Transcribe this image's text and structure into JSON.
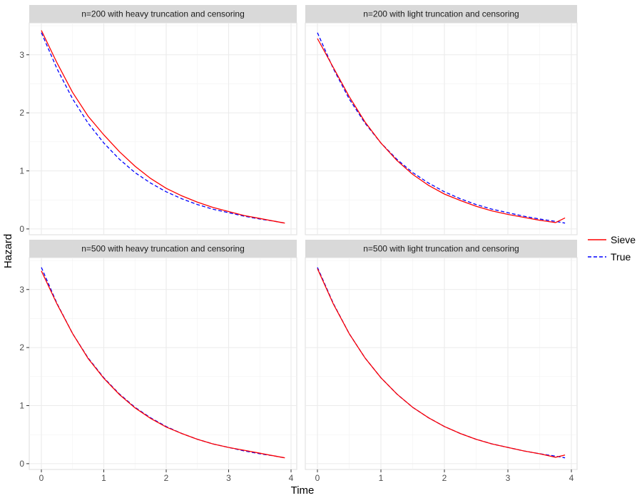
{
  "chart_data": {
    "type": "line",
    "xlabel": "Time",
    "ylabel": "Hazard",
    "xlim": [
      0,
      4
    ],
    "ylim": [
      0,
      3.5
    ],
    "x_ticks": [
      0,
      1,
      2,
      3,
      4
    ],
    "y_ticks": [
      0,
      1,
      2,
      3
    ],
    "grid": true,
    "legend": {
      "placement": "right",
      "entries": [
        {
          "label": "Sieve",
          "color": "#ff0000",
          "linestyle": "solid"
        },
        {
          "label": "True",
          "color": "#0000ff",
          "linestyle": "dashed"
        }
      ]
    },
    "panels": [
      {
        "title": "n=200 with heavy truncation and censoring",
        "series": [
          {
            "name": "Sieve",
            "x": [
              0,
              0.25,
              0.5,
              0.75,
              1,
              1.25,
              1.5,
              1.75,
              2,
              2.25,
              2.5,
              2.75,
              3,
              3.25,
              3.5,
              3.75,
              3.9
            ],
            "y": [
              3.42,
              2.86,
              2.35,
              1.94,
              1.62,
              1.33,
              1.08,
              0.87,
              0.7,
              0.57,
              0.46,
              0.37,
              0.3,
              0.23,
              0.18,
              0.13,
              0.1
            ]
          },
          {
            "name": "True",
            "x": [
              0,
              0.25,
              0.5,
              0.75,
              1,
              1.25,
              1.5,
              1.75,
              2,
              2.25,
              2.5,
              2.75,
              3,
              3.25,
              3.5,
              3.75,
              3.9
            ],
            "y": [
              3.38,
              2.76,
              2.24,
              1.82,
              1.48,
              1.2,
              0.97,
              0.79,
              0.64,
              0.52,
              0.42,
              0.34,
              0.28,
              0.22,
              0.17,
              0.13,
              0.1
            ]
          }
        ]
      },
      {
        "title": "n=200 with light truncation and censoring",
        "series": [
          {
            "name": "Sieve",
            "x": [
              0,
              0.25,
              0.5,
              0.75,
              1,
              1.25,
              1.5,
              1.75,
              2,
              2.25,
              2.5,
              2.75,
              3,
              3.25,
              3.5,
              3.75,
              3.9
            ],
            "y": [
              3.28,
              2.78,
              2.28,
              1.84,
              1.48,
              1.18,
              0.94,
              0.75,
              0.6,
              0.49,
              0.39,
              0.31,
              0.25,
              0.2,
              0.15,
              0.11,
              0.19
            ]
          },
          {
            "name": "True",
            "x": [
              0,
              0.25,
              0.5,
              0.75,
              1,
              1.25,
              1.5,
              1.75,
              2,
              2.25,
              2.5,
              2.75,
              3,
              3.25,
              3.5,
              3.75,
              3.9
            ],
            "y": [
              3.38,
              2.76,
              2.24,
              1.82,
              1.48,
              1.2,
              0.97,
              0.79,
              0.64,
              0.52,
              0.42,
              0.34,
              0.28,
              0.22,
              0.17,
              0.13,
              0.1
            ]
          }
        ]
      },
      {
        "title": "n=500 with heavy truncation and censoring",
        "series": [
          {
            "name": "Sieve",
            "x": [
              0,
              0.25,
              0.5,
              0.75,
              1,
              1.25,
              1.5,
              1.75,
              2,
              2.25,
              2.5,
              2.75,
              3,
              3.25,
              3.5,
              3.75,
              3.9
            ],
            "y": [
              3.32,
              2.75,
              2.24,
              1.81,
              1.47,
              1.19,
              0.96,
              0.78,
              0.63,
              0.52,
              0.42,
              0.34,
              0.28,
              0.23,
              0.18,
              0.13,
              0.1
            ]
          },
          {
            "name": "True",
            "x": [
              0,
              0.25,
              0.5,
              0.75,
              1,
              1.25,
              1.5,
              1.75,
              2,
              2.25,
              2.5,
              2.75,
              3,
              3.25,
              3.5,
              3.75,
              3.9
            ],
            "y": [
              3.38,
              2.76,
              2.24,
              1.82,
              1.48,
              1.2,
              0.97,
              0.79,
              0.64,
              0.52,
              0.42,
              0.34,
              0.28,
              0.22,
              0.17,
              0.13,
              0.1
            ]
          }
        ]
      },
      {
        "title": "n=500 with light truncation and censoring",
        "series": [
          {
            "name": "Sieve",
            "x": [
              0,
              0.25,
              0.5,
              0.75,
              1,
              1.25,
              1.5,
              1.75,
              2,
              2.25,
              2.5,
              2.75,
              3,
              3.25,
              3.5,
              3.75,
              3.9
            ],
            "y": [
              3.36,
              2.75,
              2.24,
              1.82,
              1.48,
              1.2,
              0.97,
              0.79,
              0.64,
              0.52,
              0.42,
              0.34,
              0.28,
              0.22,
              0.17,
              0.11,
              0.15
            ]
          },
          {
            "name": "True",
            "x": [
              0,
              0.25,
              0.5,
              0.75,
              1,
              1.25,
              1.5,
              1.75,
              2,
              2.25,
              2.5,
              2.75,
              3,
              3.25,
              3.5,
              3.75,
              3.9
            ],
            "y": [
              3.38,
              2.76,
              2.24,
              1.82,
              1.48,
              1.2,
              0.97,
              0.79,
              0.64,
              0.52,
              0.42,
              0.34,
              0.28,
              0.22,
              0.17,
              0.13,
              0.1
            ]
          }
        ]
      }
    ]
  }
}
